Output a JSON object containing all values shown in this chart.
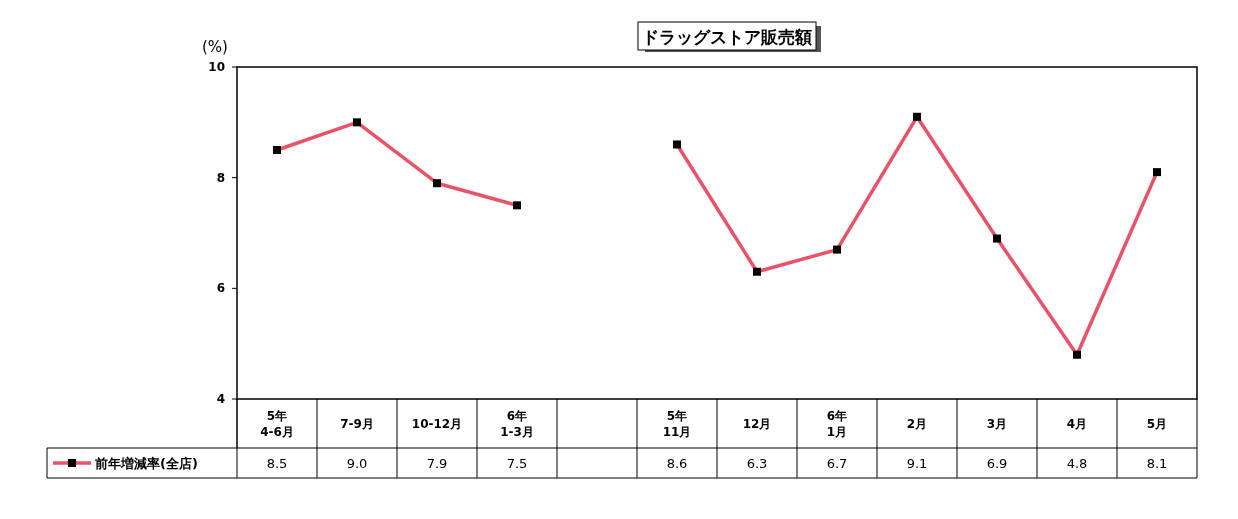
{
  "chart_data": {
    "type": "line",
    "title": "ドラッグストア販売額",
    "ylabel": "(%)",
    "categories": [
      "5年\n4-6月",
      "7-9月",
      "10-12月",
      "6年\n1-3月",
      null,
      "5年\n11月",
      "12月",
      "6年\n1月",
      "2月",
      "3月",
      "4月",
      "5月"
    ],
    "series": [
      {
        "name": "前年増減率(全店)",
        "color": "#e8536a",
        "values": [
          8.5,
          9.0,
          7.9,
          7.5,
          null,
          8.6,
          6.3,
          6.7,
          9.1,
          6.9,
          4.8,
          8.1
        ],
        "value_labels": [
          "8.5",
          "9.0",
          "7.9",
          "7.5",
          null,
          "8.6",
          "6.3",
          "6.7",
          "9.1",
          "6.9",
          "4.8",
          "8.1"
        ]
      }
    ],
    "ylim": [
      4,
      10
    ],
    "yticks": [
      4,
      6,
      8,
      10
    ],
    "marker": "square",
    "line_style": "solid",
    "legend": "bottom",
    "grid": false
  }
}
